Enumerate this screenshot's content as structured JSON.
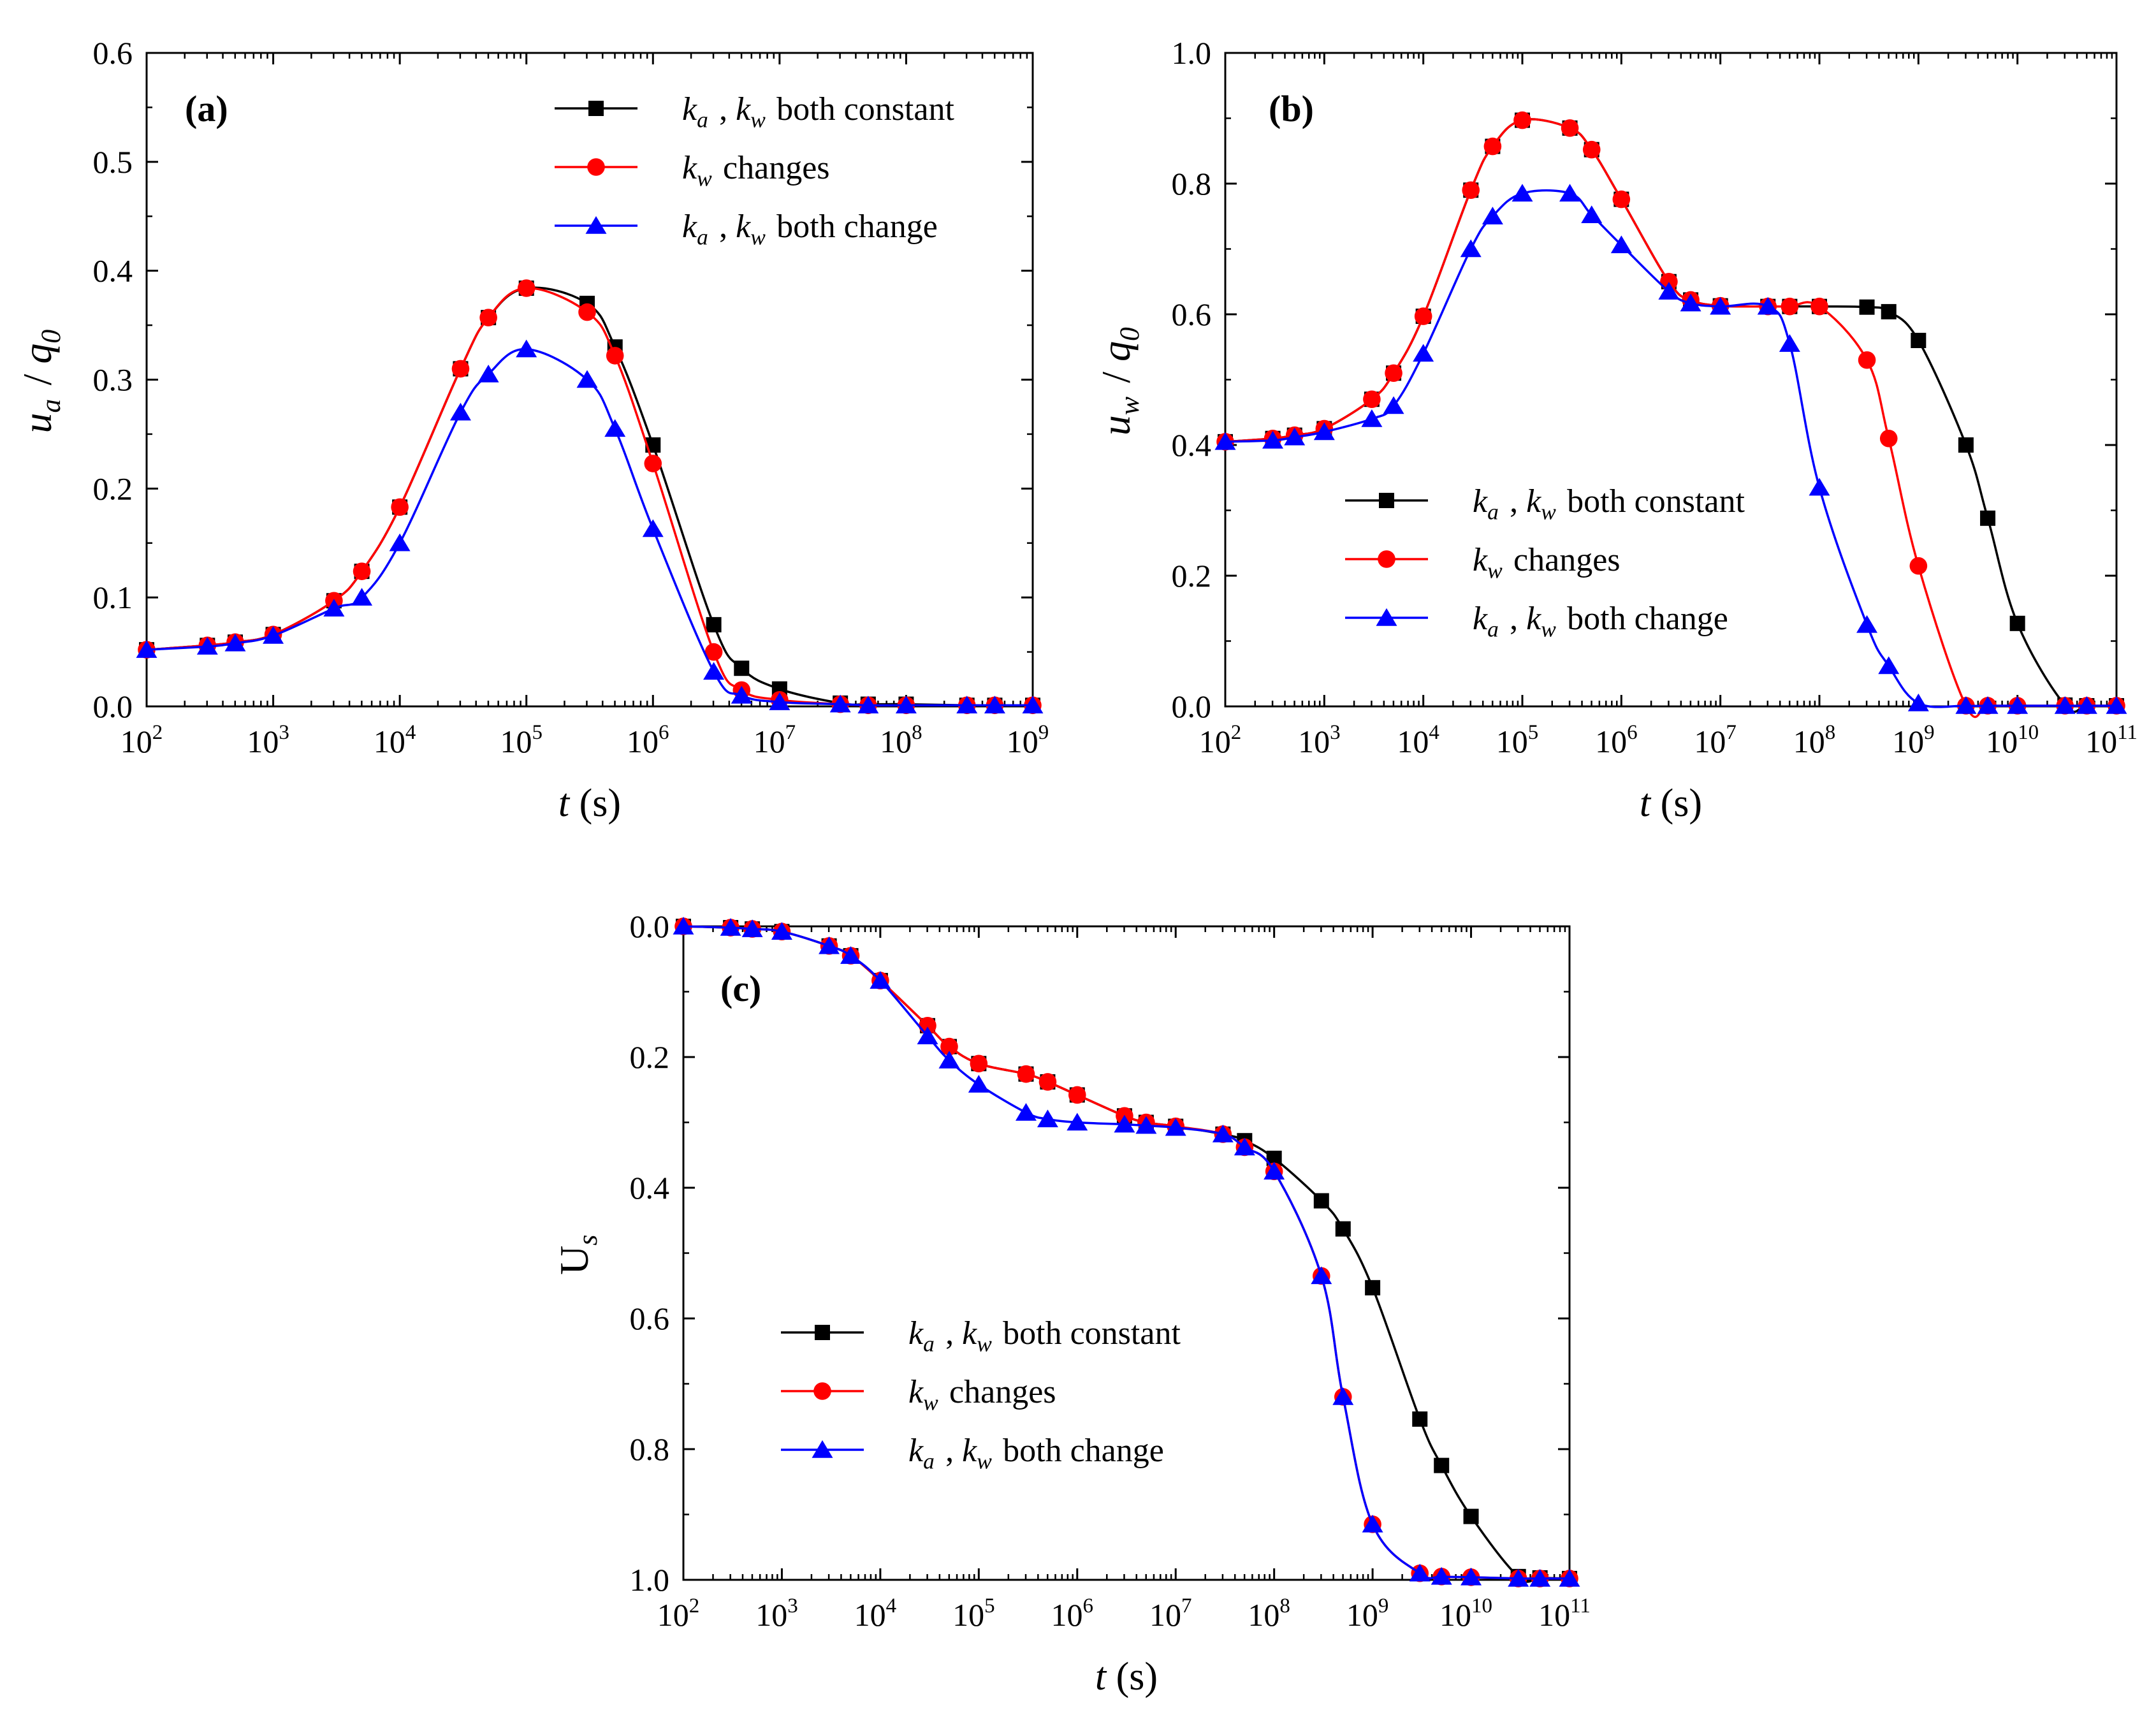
{
  "figure": {
    "colors": {
      "black": "#000000",
      "red": "#ff0000",
      "blue": "#0000ff"
    }
  },
  "chart_data": [
    {
      "id": "a",
      "type": "line",
      "panel_label": "(a)",
      "xscale": "log",
      "xlim": [
        2,
        9
      ],
      "xlim_note": "log10 exponents (t from 10^2 to 10^9 s)",
      "ylim": [
        0,
        0.6
      ],
      "yticks": [
        "0.0",
        "0.1",
        "0.2",
        "0.3",
        "0.4",
        "0.5",
        "0.6"
      ],
      "xticks": [
        "2",
        "3",
        "4",
        "5",
        "6",
        "7",
        "8",
        "9"
      ],
      "xlabel": {
        "var": "t",
        "unit": "(s)"
      },
      "ylabel": {
        "var": "u",
        "sub": "a",
        "sep": " / ",
        "var2": "q",
        "sub2": "0"
      },
      "legend_position": "top-right",
      "series": [
        {
          "name": "ka , kw both constant",
          "color": "#000000",
          "marker": "square",
          "x": [
            2,
            2.48,
            2.7,
            3,
            3.48,
            3.7,
            4,
            4.48,
            4.7,
            5,
            5.48,
            5.7,
            6,
            6.48,
            6.7,
            7,
            7.48,
            7.7,
            8,
            8.48,
            8.7,
            9
          ],
          "y": [
            0.052,
            0.056,
            0.059,
            0.066,
            0.097,
            0.124,
            0.183,
            0.31,
            0.357,
            0.384,
            0.37,
            0.33,
            0.24,
            0.075,
            0.035,
            0.016,
            0.003,
            0.002,
            0.002,
            0.001,
            0.001,
            0.001
          ]
        },
        {
          "name": "kw changes",
          "color": "#ff0000",
          "marker": "circle",
          "x": [
            2,
            2.48,
            2.7,
            3,
            3.48,
            3.7,
            4,
            4.48,
            4.7,
            5,
            5.48,
            5.7,
            6,
            6.48,
            6.7,
            7,
            7.48,
            7.7,
            8,
            8.48,
            8.7,
            9
          ],
          "y": [
            0.052,
            0.056,
            0.059,
            0.066,
            0.097,
            0.124,
            0.183,
            0.31,
            0.357,
            0.384,
            0.362,
            0.322,
            0.223,
            0.05,
            0.015,
            0.006,
            0.002,
            0.001,
            0.001,
            0.001,
            0.001,
            0.001
          ]
        },
        {
          "name": "ka , kw both change",
          "color": "#0000ff",
          "marker": "triangle",
          "x": [
            2,
            2.48,
            2.7,
            3,
            3.48,
            3.7,
            4,
            4.48,
            4.7,
            5,
            5.48,
            5.7,
            6,
            6.48,
            6.7,
            7,
            7.48,
            7.7,
            8,
            8.48,
            8.7,
            9
          ],
          "y": [
            0.052,
            0.055,
            0.058,
            0.065,
            0.09,
            0.1,
            0.15,
            0.27,
            0.305,
            0.328,
            0.3,
            0.255,
            0.163,
            0.032,
            0.01,
            0.004,
            0.002,
            0.001,
            0.001,
            0.001,
            0.001,
            0.001
          ]
        }
      ]
    },
    {
      "id": "b",
      "type": "line",
      "panel_label": "(b)",
      "xscale": "log",
      "xlim": [
        2,
        11
      ],
      "xlim_note": "log10 exponents (t from 10^2 to 10^11 s)",
      "ylim": [
        0,
        1.0
      ],
      "yticks": [
        "0.0",
        "0.2",
        "0.4",
        "0.6",
        "0.8",
        "1.0"
      ],
      "xticks": [
        "2",
        "3",
        "4",
        "5",
        "6",
        "7",
        "8",
        "9",
        "10",
        "11"
      ],
      "xlabel": {
        "var": "t",
        "unit": "(s)"
      },
      "ylabel": {
        "var": "u",
        "sub": "w",
        "sep": " / ",
        "var2": "q",
        "sub2": "0"
      },
      "legend_position": "lower-middle",
      "series": [
        {
          "name": "ka , kw both constant",
          "color": "#000000",
          "marker": "square",
          "x": [
            2,
            2.48,
            2.7,
            3,
            3.48,
            3.7,
            4,
            4.48,
            4.7,
            5,
            5.48,
            5.7,
            6,
            6.48,
            6.7,
            7,
            7.48,
            7.7,
            8,
            8.48,
            8.7,
            9,
            9.48,
            9.7,
            10,
            10.48,
            10.7,
            11
          ],
          "y": [
            0.405,
            0.41,
            0.415,
            0.425,
            0.47,
            0.51,
            0.597,
            0.79,
            0.857,
            0.897,
            0.885,
            0.852,
            0.776,
            0.65,
            0.622,
            0.613,
            0.612,
            0.612,
            0.612,
            0.611,
            0.604,
            0.56,
            0.4,
            0.288,
            0.127,
            0.002,
            0.001,
            0.001
          ]
        },
        {
          "name": "kw changes",
          "color": "#ff0000",
          "marker": "circle",
          "x": [
            2,
            2.48,
            2.7,
            3,
            3.48,
            3.7,
            4,
            4.48,
            4.7,
            5,
            5.48,
            5.7,
            6,
            6.48,
            6.7,
            7,
            7.48,
            7.7,
            8,
            8.48,
            8.7,
            9,
            9.48,
            9.7,
            10,
            10.48,
            10.7,
            11
          ],
          "y": [
            0.405,
            0.41,
            0.415,
            0.425,
            0.47,
            0.51,
            0.597,
            0.79,
            0.857,
            0.897,
            0.885,
            0.852,
            0.776,
            0.65,
            0.622,
            0.613,
            0.612,
            0.612,
            0.612,
            0.53,
            0.41,
            0.215,
            0.001,
            0.001,
            0.001,
            0.001,
            0.001,
            0.001
          ]
        },
        {
          "name": "ka , kw both change",
          "color": "#0000ff",
          "marker": "triangle",
          "x": [
            2,
            2.48,
            2.7,
            3,
            3.48,
            3.7,
            4,
            4.48,
            4.7,
            5,
            5.48,
            5.7,
            6,
            6.48,
            6.7,
            7,
            7.48,
            7.7,
            8,
            8.48,
            8.7,
            9,
            9.48,
            9.7,
            10,
            10.48,
            10.7,
            11
          ],
          "y": [
            0.405,
            0.407,
            0.412,
            0.42,
            0.44,
            0.46,
            0.54,
            0.7,
            0.75,
            0.785,
            0.785,
            0.752,
            0.706,
            0.635,
            0.617,
            0.612,
            0.612,
            0.555,
            0.335,
            0.125,
            0.062,
            0.005,
            0.001,
            0.001,
            0.001,
            0.001,
            0.001,
            0.001
          ]
        }
      ]
    },
    {
      "id": "c",
      "type": "line",
      "panel_label": "(c)",
      "xscale": "log",
      "xlim": [
        2,
        11
      ],
      "xlim_note": "log10 exponents (t from 10^2 to 10^11 s)",
      "ylim": [
        0,
        1.0
      ],
      "y_inverted": true,
      "yticks": [
        "0.0",
        "0.2",
        "0.4",
        "0.6",
        "0.8",
        "1.0"
      ],
      "xticks": [
        "2",
        "3",
        "4",
        "5",
        "6",
        "7",
        "8",
        "9",
        "10",
        "11"
      ],
      "xlabel": {
        "var": "t",
        "unit": "(s)"
      },
      "ylabel": {
        "var": "U",
        "sub": "s"
      },
      "legend_position": "bottom-left",
      "series": [
        {
          "name": "ka , kw both constant",
          "color": "#000000",
          "marker": "square",
          "x": [
            2,
            2.48,
            2.7,
            3,
            3.48,
            3.7,
            4,
            4.48,
            4.7,
            5,
            5.48,
            5.7,
            6,
            6.48,
            6.7,
            7,
            7.48,
            7.7,
            8,
            8.48,
            8.7,
            9,
            9.48,
            9.7,
            10,
            10.48,
            10.7,
            11
          ],
          "y": [
            0.0,
            0.002,
            0.004,
            0.008,
            0.03,
            0.045,
            0.083,
            0.152,
            0.184,
            0.21,
            0.226,
            0.238,
            0.258,
            0.29,
            0.3,
            0.306,
            0.318,
            0.328,
            0.355,
            0.42,
            0.463,
            0.553,
            0.754,
            0.825,
            0.903,
            0.995,
            0.997,
            0.998
          ]
        },
        {
          "name": "kw changes",
          "color": "#ff0000",
          "marker": "circle",
          "x": [
            2,
            2.48,
            2.7,
            3,
            3.48,
            3.7,
            4,
            4.48,
            4.7,
            5,
            5.48,
            5.7,
            6,
            6.48,
            6.7,
            7,
            7.48,
            7.7,
            8,
            8.48,
            8.7,
            9,
            9.48,
            9.7,
            10,
            10.48,
            10.7,
            11
          ],
          "y": [
            0.0,
            0.002,
            0.004,
            0.008,
            0.03,
            0.045,
            0.083,
            0.152,
            0.184,
            0.21,
            0.226,
            0.238,
            0.258,
            0.29,
            0.3,
            0.306,
            0.318,
            0.338,
            0.375,
            0.535,
            0.72,
            0.915,
            0.99,
            0.995,
            0.996,
            0.998,
            0.998,
            0.998
          ]
        },
        {
          "name": "ka , kw both change",
          "color": "#0000ff",
          "marker": "triangle",
          "x": [
            2,
            2.48,
            2.7,
            3,
            3.48,
            3.7,
            4,
            4.48,
            4.7,
            5,
            5.48,
            5.7,
            6,
            6.48,
            6.7,
            7,
            7.48,
            7.7,
            8,
            8.48,
            8.7,
            9,
            9.48,
            9.7,
            10,
            10.48,
            10.7,
            11
          ],
          "y": [
            0.0,
            0.002,
            0.004,
            0.008,
            0.03,
            0.045,
            0.083,
            0.168,
            0.205,
            0.242,
            0.285,
            0.295,
            0.3,
            0.303,
            0.305,
            0.308,
            0.318,
            0.338,
            0.375,
            0.535,
            0.72,
            0.915,
            0.99,
            0.995,
            0.996,
            0.998,
            0.998,
            0.998
          ]
        }
      ]
    }
  ],
  "legend_entries": [
    {
      "marker": "square",
      "color": "#000000",
      "parts": [
        {
          "t": "k",
          "i": true,
          "sub": "a"
        },
        {
          "t": " , "
        },
        {
          "t": "k",
          "i": true,
          "sub": "w"
        },
        {
          "t": " both constant"
        }
      ]
    },
    {
      "marker": "circle",
      "color": "#ff0000",
      "parts": [
        {
          "t": "k",
          "i": true,
          "sub": "w"
        },
        {
          "t": " changes"
        }
      ]
    },
    {
      "marker": "triangle",
      "color": "#0000ff",
      "parts": [
        {
          "t": "k",
          "i": true,
          "sub": "a"
        },
        {
          "t": " , "
        },
        {
          "t": "k",
          "i": true,
          "sub": "w"
        },
        {
          "t": " both change"
        }
      ]
    }
  ]
}
